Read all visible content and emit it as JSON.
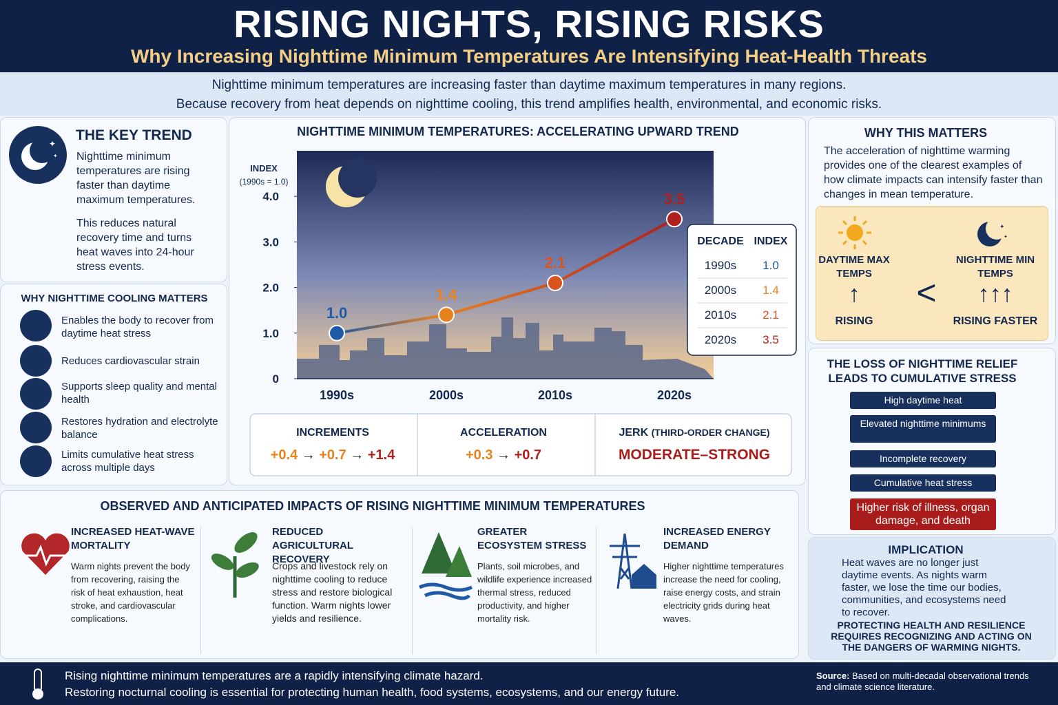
{
  "header": {
    "title": "RISING NIGHTS, RISING RISKS",
    "subtitle": "Why Increasing Nighttime Minimum Temperatures Are Intensifying Heat-Health Threats"
  },
  "intro": [
    "Nighttime minimum temperatures are increasing faster than daytime maximum temperatures in many regions.",
    "Because recovery from heat depends on nighttime cooling, this trend amplifies health, environmental, and economic risks."
  ],
  "key_trend": {
    "title": "THE KEY TREND",
    "paragraphs": [
      "Nighttime minimum temperatures are rising faster than daytime maximum temperatures.",
      "This reduces natural recovery time and turns heat waves into 24-hour stress events."
    ]
  },
  "cooling": {
    "title": "WHY NIGHTTIME COOLING MATTERS",
    "items": [
      "Enables the body to recover from daytime heat stress",
      "Reduces cardiovascular strain",
      "Supports sleep quality and mental health",
      "Restores hydration and electrolyte balance",
      "Limits cumulative heat stress across multiple days"
    ]
  },
  "chart_data": {
    "type": "line",
    "title": "NIGHTTIME MINIMUM TEMPERATURES: ACCELERATING UPWARD TREND",
    "y_label": "INDEX",
    "y_label_note": "(1990s = 1.0)",
    "categories": [
      "1990s",
      "2000s",
      "2010s",
      "2020s"
    ],
    "series": [
      {
        "values": [
          1.0,
          1.4,
          2.1,
          3.5
        ],
        "value_labels": [
          "1.0",
          "1.4",
          "2.1",
          "3.5"
        ],
        "colors": [
          "#1f5aa6",
          "#e8821e",
          "#d9531e",
          "#b0201e"
        ]
      }
    ],
    "ylim": [
      0,
      5
    ],
    "yticks": [
      0,
      {
        "value": 1,
        "label": "1.0"
      },
      {
        "value": 2,
        "label": "2.0"
      },
      {
        "value": 3,
        "label": "3.0"
      },
      {
        "value": 4,
        "label": "4.0"
      }
    ]
  },
  "table": {
    "headers": [
      "DECADE",
      "INDEX"
    ],
    "rows": [
      [
        "1990s",
        "1.0"
      ],
      [
        "2000s",
        "1.4"
      ],
      [
        "2010s",
        "2.1"
      ],
      [
        "2020s",
        "3.5"
      ]
    ]
  },
  "metrics": {
    "arrow": "→",
    "increments": {
      "title": "INCREMENTS",
      "values": [
        "+0.4",
        "+0.7",
        "+1.4"
      ]
    },
    "acceleration": {
      "title": "ACCELERATION",
      "values": [
        "+0.3",
        "+0.7"
      ]
    },
    "jerk": {
      "title": "JERK",
      "note": "(THIRD-ORDER CHANGE)",
      "value": "MODERATE–STRONG"
    }
  },
  "impacts": {
    "title": "OBSERVED AND ANTICIPATED IMPACTS OF RISING NIGHTTIME MINIMUM TEMPERATURES",
    "items": [
      {
        "title": "INCREASED HEAT-WAVE MORTALITY",
        "text": "Warm nights prevent the body from recovering, raising the risk of heat exhaustion, heat stroke, and cardiovascular complications."
      },
      {
        "title": "REDUCED AGRICULTURAL RECOVERY",
        "text": "Crops and livestock rely on nighttime cooling to reduce stress and restore biological function. Warm nights lower yields and resilience."
      },
      {
        "title": "GREATER ECOSYSTEM STRESS",
        "text": "Plants, soil microbes, and wildlife experience increased thermal stress, reduced productivity, and higher mortality risk."
      },
      {
        "title": "INCREASED ENERGY DEMAND",
        "text": "Higher nighttime temperatures increase the need for cooling, raise energy costs, and strain electricity grids during heat waves."
      }
    ]
  },
  "why": {
    "title": "WHY THIS MATTERS",
    "text": "The acceleration of nighttime warming provides one of the clearest examples of how climate impacts can intensify faster than changes in mean temperature."
  },
  "compare": {
    "left": {
      "label": "DAYTIME MAX TEMPS",
      "arrows": "↑",
      "status": "RISING"
    },
    "symbol": "<",
    "right": {
      "label": "NIGHTTIME MIN TEMPS",
      "arrows": "↑↑↑",
      "status": "RISING FASTER"
    }
  },
  "cascade": {
    "title": "THE LOSS OF NIGHTTIME RELIEF LEADS TO CUMULATIVE STRESS",
    "steps": [
      "High daytime heat",
      "Elevated nighttime minimums",
      "Incomplete recovery",
      "Cumulative heat stress",
      "Higher risk of illness, organ damage, and death"
    ]
  },
  "implication": {
    "title": "IMPLICATION",
    "text": "Heat waves are no longer just daytime events. As nights warm faster, we lose the time our bodies, communities, and ecosystems need to recover.",
    "emphasis": "PROTECTING HEALTH AND RESILIENCE REQUIRES RECOGNIZING AND ACTING ON THE DANGERS OF WARMING NIGHTS."
  },
  "footer": {
    "lines": [
      "Rising nighttime minimum temperatures are a rapidly intensifying climate hazard.",
      "Restoring nocturnal cooling is essential for protecting human health, food systems, ecosystems, and our energy future."
    ],
    "source_label": "Source:",
    "source": "Based on multi-decadal observational trends and climate science literature."
  }
}
